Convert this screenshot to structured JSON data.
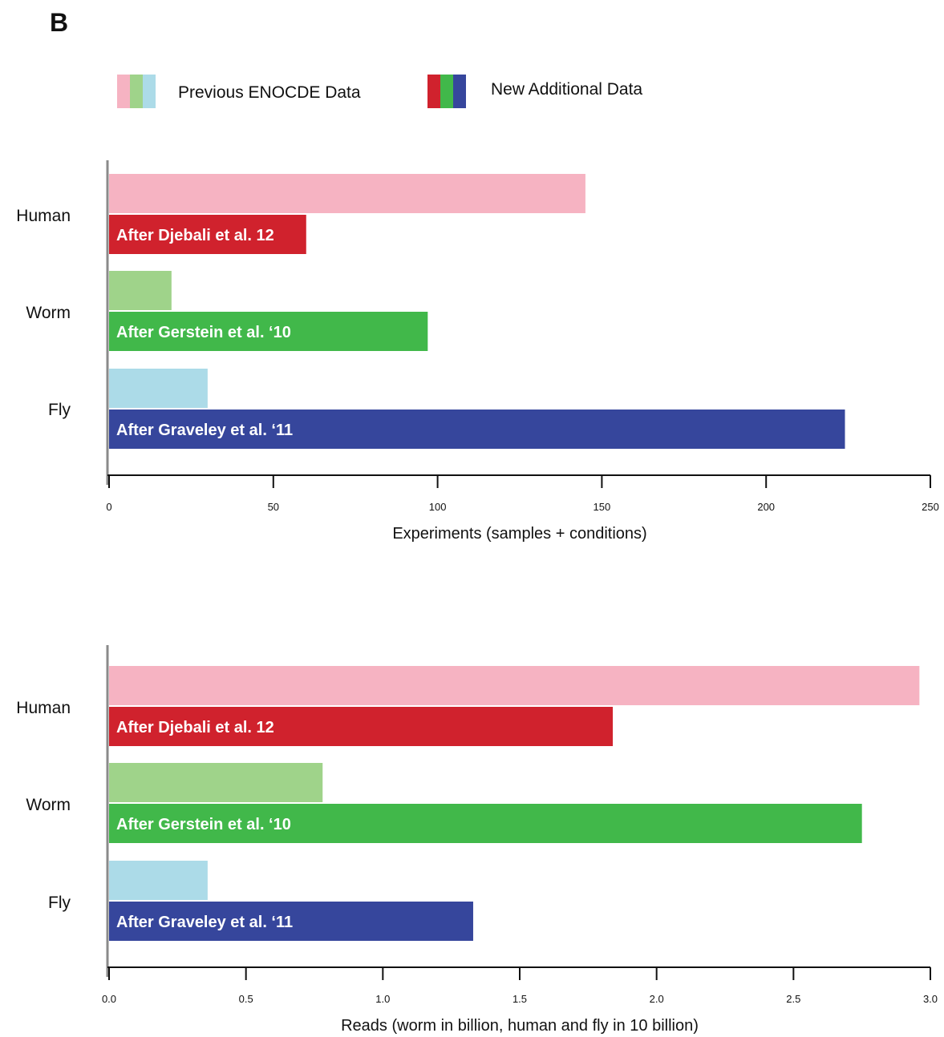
{
  "panel_label": "B",
  "legend": {
    "previous": {
      "label": "Previous ENOCDE Data",
      "colors": [
        "#f6b3c2",
        "#9fd38a",
        "#acdbe8"
      ]
    },
    "new": {
      "label": "New Additional Data",
      "colors": [
        "#d0222d",
        "#41b84a",
        "#36469c"
      ]
    }
  },
  "chart_data": [
    {
      "type": "bar",
      "orientation": "horizontal",
      "categories": [
        "Human",
        "Worm",
        "Fly"
      ],
      "series": [
        {
          "name": "Previous ENOCDE Data",
          "values": [
            145,
            19,
            30
          ],
          "colors": [
            "#f6b3c2",
            "#9fd38a",
            "#acdbe8"
          ]
        },
        {
          "name": "New Additional Data",
          "values": [
            60,
            97,
            224
          ],
          "colors": [
            "#d0222d",
            "#41b84a",
            "#36469c"
          ],
          "bar_labels": [
            "After Djebali et al. 12",
            "After Gerstein et al. ‘10",
            "After Graveley et al. ‘11"
          ]
        }
      ],
      "xlabel": "Experiments (samples + conditions)",
      "xlim": [
        0,
        250
      ],
      "xticks": [
        "0",
        "50",
        "100",
        "150",
        "200",
        "250"
      ],
      "grid": false
    },
    {
      "type": "bar",
      "orientation": "horizontal",
      "categories": [
        "Human",
        "Worm",
        "Fly"
      ],
      "series": [
        {
          "name": "Previous ENOCDE Data",
          "values": [
            2.96,
            0.78,
            0.36
          ],
          "colors": [
            "#f6b3c2",
            "#9fd38a",
            "#acdbe8"
          ]
        },
        {
          "name": "New Additional Data",
          "values": [
            1.84,
            2.75,
            1.33
          ],
          "colors": [
            "#d0222d",
            "#41b84a",
            "#36469c"
          ],
          "bar_labels": [
            "After Djebali et al. 12",
            "After Gerstein et al. ‘10",
            "After Graveley et al. ‘11"
          ]
        }
      ],
      "xlabel": "Reads (worm in billion, human and fly in 10 billion)",
      "xlim": [
        0,
        3.0
      ],
      "xticks": [
        "0.0",
        "0.5",
        "1.0",
        "1.5",
        "2.0",
        "2.5",
        "3.0"
      ],
      "grid": false
    }
  ]
}
